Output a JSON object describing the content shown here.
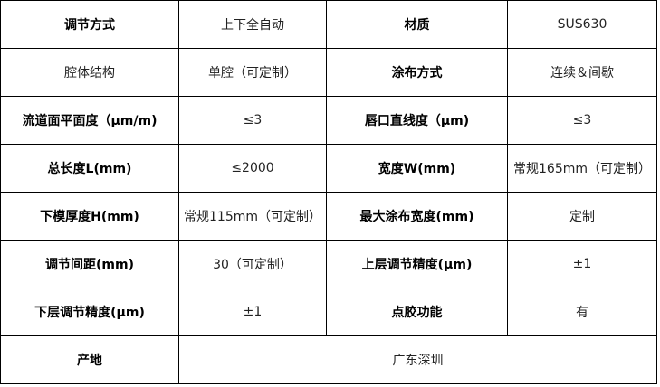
{
  "rows": [
    {
      "k1": "调节方式",
      "v1": "上下全自动",
      "k2": "材质",
      "v2": "SUS630",
      "k1_bold": true
    },
    {
      "k1": "腔体结构",
      "v1": "单腔（可定制）",
      "k2": "涂布方式",
      "v2": "连续＆间歇",
      "k1_bold": false
    },
    {
      "k1": "流道面平面度（μm/m)",
      "v1": "≤3",
      "k2": "唇口直线度（μm)",
      "v2": "≤3",
      "k1_bold": true
    },
    {
      "k1": "总长度L(mm)",
      "v1": "≤2000",
      "k2": "宽度W(mm)",
      "v2": "常规165mm（可定制）",
      "k1_bold": true
    },
    {
      "k1": "下模厚度H(mm)",
      "v1": "常规115mm（可定制）",
      "k2": "最大涂布宽度(mm)",
      "v2": "定制",
      "k1_bold": true
    },
    {
      "k1": "调节间距(mm)",
      "v1": "30（可定制）",
      "k2": "上层调节精度(μm)",
      "v2": "±1",
      "k1_bold": true
    },
    {
      "k1": "下层调节精度(μm)",
      "v1": "±1",
      "k2": "点胶功能",
      "v2": "有",
      "k1_bold": true
    }
  ],
  "origin": {
    "label": "产地",
    "value": "广东深圳"
  }
}
